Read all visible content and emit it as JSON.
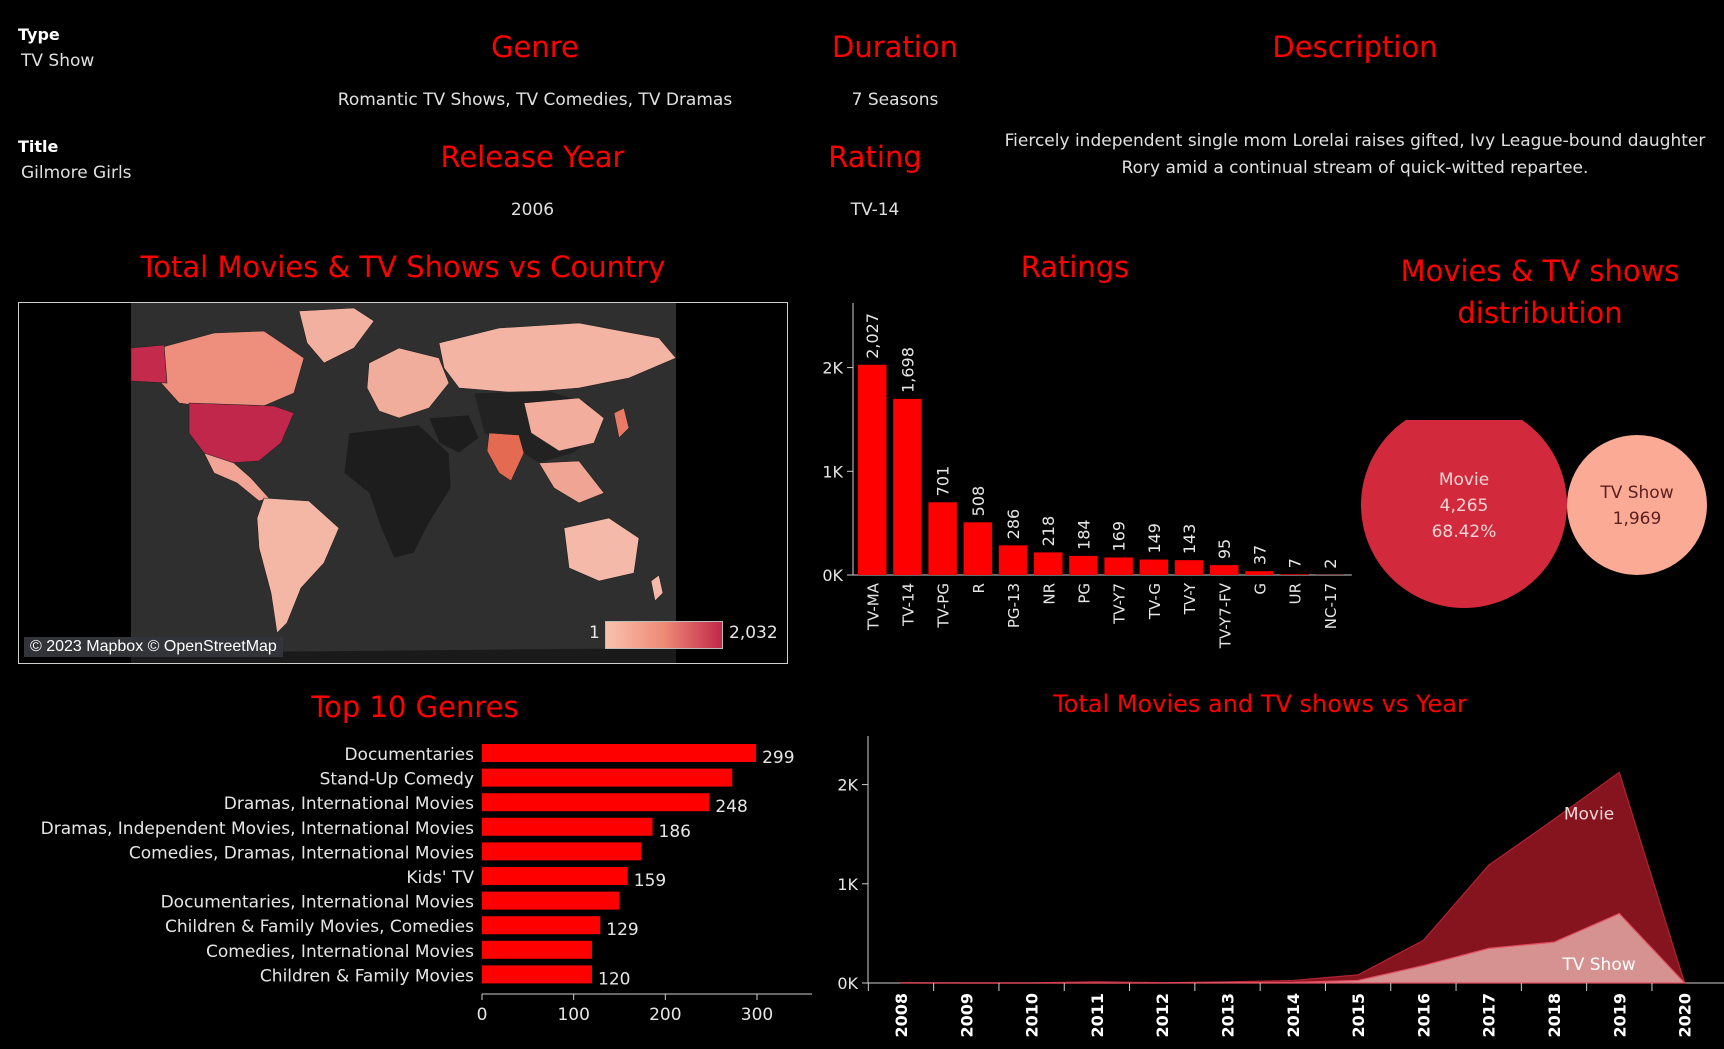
{
  "details": {
    "type_label": "Type",
    "type_value": "TV Show",
    "title_label": "Title",
    "title_value": "Gilmore Girls",
    "genre_label": "Genre",
    "genre_value": "Romantic TV Shows, TV Comedies, TV Dramas",
    "duration_label": "Duration",
    "duration_value": "7 Seasons",
    "release_label": "Release Year",
    "release_value": "2006",
    "rating_label": "Rating",
    "rating_value": "TV-14",
    "description_label": "Description",
    "description_line1": "Fiercely independent single mom Lorelai raises gifted, Ivy League-bound daughter",
    "description_line2": "Rory amid a continual stream of quick-witted repartee."
  },
  "titles": {
    "map": "Total Movies & TV Shows vs Country",
    "ratings": "Ratings",
    "distribution_line1": "Movies & TV shows",
    "distribution_line2": "distribution",
    "genres": "Top 10 Genres",
    "year": "Total Movies and TV shows vs Year"
  },
  "map": {
    "attribution": "© 2023 Mapbox © OpenStreetMap",
    "legend_min": "1",
    "legend_max": "2,032",
    "colors": {
      "low": "#f8c2ae",
      "mid": "#ee8a76",
      "high": "#c1274a",
      "land_none": "#222222",
      "ocean": "#2f2f2f"
    }
  },
  "chart_data": [
    {
      "type": "bar",
      "name": "ratings",
      "categories": [
        "TV-MA",
        "TV-14",
        "TV-PG",
        "R",
        "PG-13",
        "NR",
        "PG",
        "TV-Y7",
        "TV-G",
        "TV-Y",
        "TV-Y7-FV",
        "G",
        "UR",
        "NC-17"
      ],
      "values": [
        2027,
        1698,
        701,
        508,
        286,
        218,
        184,
        169,
        149,
        143,
        95,
        37,
        7,
        2
      ],
      "labels": [
        "2,027",
        "1,698",
        "701",
        "508",
        "286",
        "218",
        "184",
        "169",
        "149",
        "143",
        "95",
        "37",
        "7",
        "2"
      ],
      "ylim": [
        0,
        2700
      ],
      "yticks": [
        0,
        1000,
        2000
      ],
      "ytick_labels": [
        "0K",
        "1K",
        "2K"
      ],
      "color": "#ff0000"
    },
    {
      "type": "pie",
      "name": "distribution",
      "slices": [
        {
          "label": "Movie",
          "value": 4265,
          "value_label": "4,265",
          "percent": "68.42%",
          "color": "#d22a3c"
        },
        {
          "label": "TV Show",
          "value": 1969,
          "value_label": "1,969",
          "color": "#fbaa96"
        }
      ]
    },
    {
      "type": "bar",
      "name": "top_genres",
      "orientation": "horizontal",
      "categories": [
        "Documentaries",
        "Stand-Up Comedy",
        "Dramas, International Movies",
        "Dramas, Independent Movies, International Movies",
        "Comedies, Dramas, International Movies",
        "Kids' TV",
        "Documentaries, International Movies",
        "Children & Family Movies, Comedies",
        "Comedies, International Movies",
        "Children & Family Movies"
      ],
      "values": [
        299,
        273,
        248,
        186,
        174,
        159,
        150,
        129,
        120,
        120
      ],
      "labels": [
        "299",
        "",
        "248",
        "186",
        "",
        "159",
        "",
        "129",
        "",
        "120"
      ],
      "xlim": [
        0,
        360
      ],
      "xticks": [
        0,
        100,
        200,
        300
      ],
      "xtick_labels": [
        "0",
        "100",
        "200",
        "300"
      ],
      "color": "#ff0000"
    },
    {
      "type": "area",
      "name": "year",
      "x": [
        "2008",
        "2009",
        "2010",
        "2011",
        "2012",
        "2013",
        "2014",
        "2015",
        "2016",
        "2017",
        "2018",
        "2019",
        "2020"
      ],
      "series": [
        {
          "name": "Movie",
          "values": [
            1,
            2,
            1,
            13,
            3,
            6,
            19,
            56,
            253,
            839,
            1237,
            1424,
            0
          ],
          "color": "#8c1520"
        },
        {
          "name": "TV Show",
          "values": [
            1,
            0,
            0,
            0,
            0,
            5,
            6,
            26,
            176,
            349,
            412,
            700,
            0
          ],
          "color": "#d59291"
        }
      ],
      "ylim": [
        0,
        2500
      ],
      "yticks": [
        0,
        1000,
        2000
      ],
      "ytick_labels": [
        "0K",
        "1K",
        "2K"
      ]
    }
  ]
}
